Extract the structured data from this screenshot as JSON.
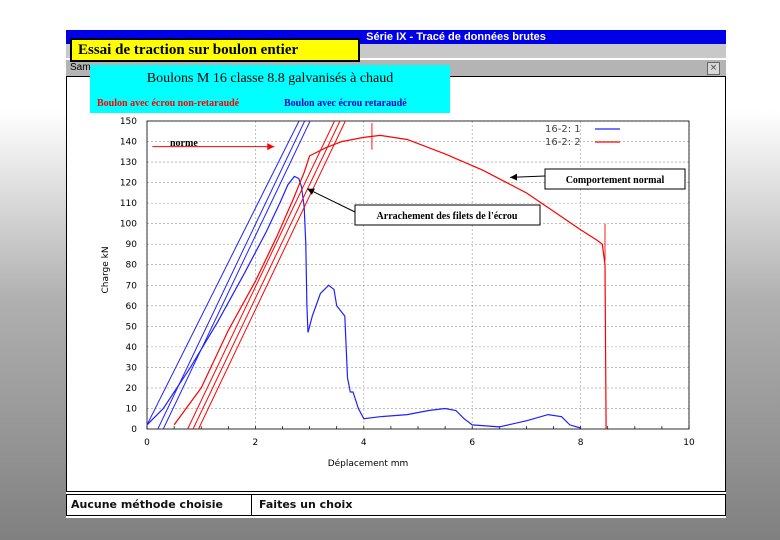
{
  "window": {
    "title": "Série IX - Tracé de données brutes",
    "subtitle_fragment": "Sam",
    "close_glyph": "×"
  },
  "overlay": {
    "title": "Essai de traction sur boulon entier",
    "subtitle": "Boulons  M 16  classe 8.8  galvanisés à chaud",
    "label_red": "Boulon avec écrou non-retaraudé",
    "label_blue": "Boulon avec écrou retaraudé"
  },
  "status": {
    "left": "Aucune méthode choisie",
    "right": "Faites un choix"
  },
  "colors": {
    "red": "#ff0000",
    "blue": "#2020ff",
    "title_bar": "#0000e8",
    "title_box": "#ffff00",
    "cyan": "#00ffff"
  },
  "chart_data": {
    "type": "line",
    "xlabel": "Déplacement mm",
    "ylabel": "Charge kN",
    "xlim": [
      0,
      10
    ],
    "ylim": [
      0,
      150
    ],
    "xticks": [
      0,
      2,
      4,
      6,
      8,
      10
    ],
    "yticks": [
      0,
      10,
      20,
      30,
      40,
      50,
      60,
      70,
      80,
      90,
      100,
      110,
      120,
      130,
      140,
      150
    ],
    "grid": true,
    "legend_position": "top-right",
    "series": [
      {
        "name": "16-2: 1",
        "color": "#2020ff",
        "points": [
          [
            0,
            2
          ],
          [
            0.3,
            10
          ],
          [
            0.8,
            30
          ],
          [
            1.3,
            52
          ],
          [
            1.8,
            76
          ],
          [
            2.2,
            96
          ],
          [
            2.45,
            110
          ],
          [
            2.6,
            119
          ],
          [
            2.72,
            123
          ],
          [
            2.8,
            122
          ],
          [
            2.85,
            118
          ],
          [
            2.9,
            108
          ],
          [
            2.93,
            90
          ],
          [
            2.95,
            60
          ],
          [
            2.97,
            47
          ],
          [
            3.05,
            55
          ],
          [
            3.2,
            66
          ],
          [
            3.35,
            70
          ],
          [
            3.45,
            68
          ],
          [
            3.5,
            60
          ],
          [
            3.65,
            55
          ],
          [
            3.7,
            25
          ],
          [
            3.75,
            18
          ],
          [
            3.8,
            18
          ],
          [
            3.9,
            10
          ],
          [
            4.0,
            5
          ],
          [
            4.3,
            6
          ],
          [
            4.8,
            7
          ],
          [
            5.2,
            9
          ],
          [
            5.5,
            10
          ],
          [
            5.7,
            9
          ],
          [
            5.85,
            5
          ],
          [
            6.0,
            2
          ],
          [
            6.5,
            1
          ],
          [
            7.0,
            4
          ],
          [
            7.4,
            7
          ],
          [
            7.65,
            6
          ],
          [
            7.8,
            2
          ],
          [
            8.0,
            0.5
          ]
        ],
        "elastic_lines": [
          [
            [
              0,
              2
            ],
            [
              2.9,
              155
            ]
          ],
          [
            [
              0.2,
              0
            ],
            [
              3.0,
              155
            ]
          ],
          [
            [
              0.3,
              0
            ],
            [
              3.1,
              155
            ]
          ]
        ]
      },
      {
        "name": "16-2: 2",
        "color": "#ff0000",
        "points": [
          [
            0.5,
            2
          ],
          [
            1.0,
            20
          ],
          [
            1.5,
            48
          ],
          [
            2.0,
            72
          ],
          [
            2.4,
            94
          ],
          [
            2.7,
            112
          ],
          [
            2.9,
            125
          ],
          [
            3.0,
            133
          ],
          [
            3.3,
            137
          ],
          [
            3.6,
            140
          ],
          [
            4.0,
            142
          ],
          [
            4.3,
            143
          ],
          [
            4.8,
            141
          ],
          [
            5.5,
            134
          ],
          [
            6.2,
            126
          ],
          [
            7.0,
            115
          ],
          [
            7.5,
            106
          ],
          [
            8.0,
            97
          ],
          [
            8.3,
            92
          ],
          [
            8.4,
            90
          ],
          [
            8.45,
            80
          ],
          [
            8.47,
            0
          ]
        ],
        "elastic_lines": [
          [
            [
              0.75,
              0
            ],
            [
              3.55,
              155
            ]
          ],
          [
            [
              0.85,
              0
            ],
            [
              3.65,
              155
            ]
          ],
          [
            [
              0.95,
              0
            ],
            [
              3.75,
              155
            ]
          ]
        ]
      }
    ],
    "annotations": [
      {
        "text": "norme",
        "arrow_from": [
          0.1,
          137.5
        ],
        "arrow_to": [
          2.2,
          137.5
        ],
        "color": "#ff0000"
      },
      {
        "text": "Comportement normal",
        "arrow_to": [
          6.7,
          124
        ]
      },
      {
        "text": "Arrachement des filets de l'écrou",
        "arrow_to": [
          2.9,
          118
        ]
      }
    ]
  }
}
